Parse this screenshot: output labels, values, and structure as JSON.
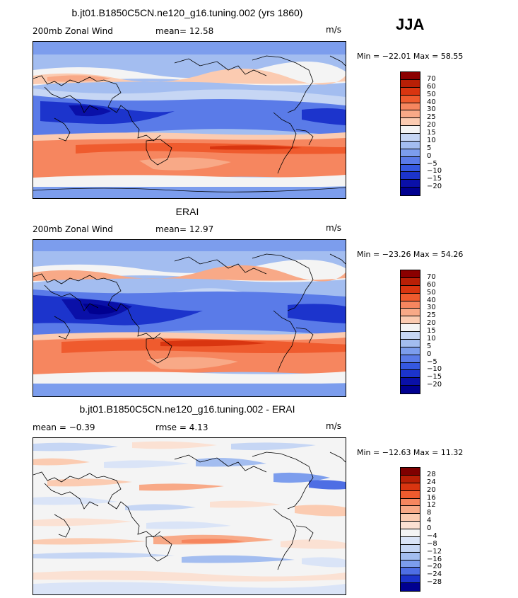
{
  "season": "JJA",
  "panels": [
    {
      "title": "b.jt01.B1850C5CN.ne120_g16.tuning.002 (yrs 1860)",
      "left_label": "200mb  Zonal Wind",
      "mid_label": "mean=    12.58",
      "units": "m/s",
      "minmax": "Min = −22.01  Max =   58.55",
      "levels": [
        "70",
        "60",
        "50",
        "40",
        "30",
        "25",
        "20",
        "15",
        "10",
        "5",
        "0",
        "−5",
        "−10",
        "−15",
        "−20"
      ]
    },
    {
      "title": "ERAI",
      "left_label": "200mb  Zonal Wind",
      "mid_label": "mean=    12.97",
      "units": "m/s",
      "minmax": "Min = −23.26  Max =   54.26",
      "levels": [
        "70",
        "60",
        "50",
        "40",
        "30",
        "25",
        "20",
        "15",
        "10",
        "5",
        "0",
        "−5",
        "−10",
        "−15",
        "−20"
      ]
    },
    {
      "title": "b.jt01.B1850C5CN.ne120_g16.tuning.002 - ERAI",
      "left_label": "mean =    −0.39",
      "mid_label": "rmse =     4.13",
      "units": "m/s",
      "minmax": "Min = −12.63  Max =   11.32",
      "levels": [
        "28",
        "24",
        "20",
        "16",
        "12",
        "8",
        "4",
        "0",
        "−4",
        "−8",
        "−12",
        "−16",
        "−20",
        "−24",
        "−28"
      ]
    }
  ],
  "colors": {
    "wind_scale": [
      "#8b0000",
      "#b81f06",
      "#d93510",
      "#ef5b2e",
      "#f6865f",
      "#f8a987",
      "#fbcbb1",
      "#f4f4f4",
      "#c6d6f4",
      "#a3bdf0",
      "#7c9ded",
      "#5a7be8",
      "#3558e0",
      "#1c34cc",
      "#0a10a8",
      "#000090"
    ],
    "diff_scale": [
      "#7f0000",
      "#b81f06",
      "#d93510",
      "#ef5b2e",
      "#f6865f",
      "#f8a987",
      "#fbcbb1",
      "#fbe1d3",
      "#f4f4f4",
      "#dae4f7",
      "#c6d6f4",
      "#a3bdf0",
      "#7c9ded",
      "#4e6ee4",
      "#1c34cc",
      "#000090"
    ]
  }
}
